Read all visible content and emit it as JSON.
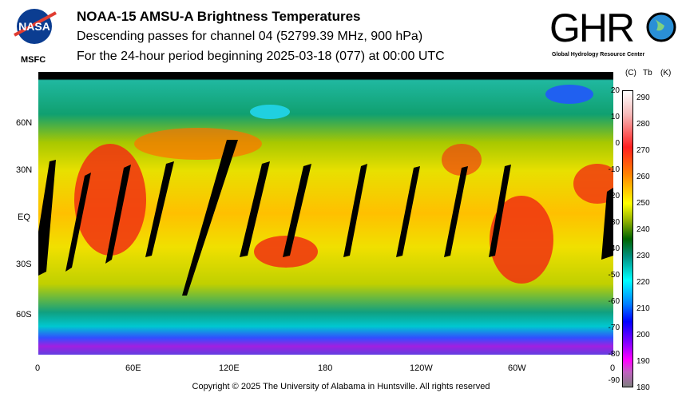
{
  "header": {
    "title": "NOAA-15 AMSU-A Brightness Temperatures",
    "subtitle": "Descending passes for channel 04 (52799.39 MHz, 900 hPa)",
    "period": "For the 24-hour period beginning 2025-03-18 (077) at 00:00 UTC"
  },
  "logos": {
    "nasa": "NASA",
    "msfc": "MSFC",
    "ghrc": "GHRC",
    "ghrc_sub": "Global Hydrology Resource Center"
  },
  "map": {
    "x_ticks": [
      "0",
      "60E",
      "120E",
      "180",
      "120W",
      "60W",
      "0"
    ],
    "y_ticks": [
      "60N",
      "30N",
      "EQ",
      "30S",
      "60S"
    ]
  },
  "colorbar": {
    "header_c": "(C)",
    "header_tb": "Tb",
    "header_k": "(K)",
    "celsius": [
      "20",
      "10",
      "0",
      "-10",
      "-20",
      "-30",
      "-40",
      "-50",
      "-60",
      "-70",
      "-80",
      "-90"
    ],
    "kelvin": [
      "290",
      "280",
      "270",
      "260",
      "250",
      "240",
      "230",
      "220",
      "210",
      "200",
      "190",
      "180"
    ]
  },
  "footer": {
    "copyright": "Copyright © 2025 The University of Alabama in Huntsville.  All rights reserved"
  }
}
